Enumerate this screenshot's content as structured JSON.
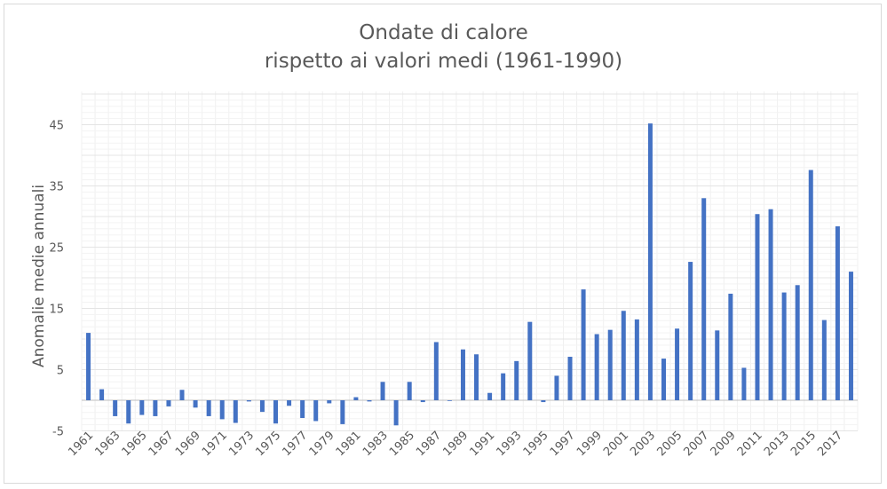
{
  "chart_data": {
    "type": "bar",
    "title": [
      "Ondate di calore",
      "rispetto ai valori medi (1961-1990)"
    ],
    "xlabel": "",
    "ylabel": "Anomalie medie annuali",
    "ylim": [
      -5,
      50
    ],
    "yticks": [
      -5,
      5,
      15,
      25,
      35,
      45
    ],
    "grid": true,
    "bar_color": "#4472c4",
    "categories": [
      1961,
      1962,
      1963,
      1964,
      1965,
      1966,
      1967,
      1968,
      1969,
      1970,
      1971,
      1972,
      1973,
      1974,
      1975,
      1976,
      1977,
      1978,
      1979,
      1980,
      1981,
      1982,
      1983,
      1984,
      1985,
      1986,
      1987,
      1988,
      1989,
      1990,
      1991,
      1992,
      1993,
      1994,
      1995,
      1996,
      1997,
      1998,
      1999,
      2000,
      2001,
      2002,
      2003,
      2004,
      2005,
      2006,
      2007,
      2008,
      2009,
      2010,
      2011,
      2012,
      2013,
      2014,
      2015,
      2016,
      2017,
      2018
    ],
    "xtick_labels": [
      "1961",
      "1963",
      "1965",
      "1967",
      "1969",
      "1971",
      "1973",
      "1975",
      "1977",
      "1979",
      "1981",
      "1983",
      "1985",
      "1987",
      "1989",
      "1991",
      "1993",
      "1995",
      "1997",
      "1999",
      "2001",
      "2003",
      "2005",
      "2007",
      "2009",
      "2011",
      "2013",
      "2015",
      "2017"
    ],
    "values": [
      11.0,
      1.8,
      -2.6,
      -3.8,
      -2.4,
      -2.6,
      -1.0,
      1.7,
      -1.2,
      -2.6,
      -3.1,
      -3.7,
      -0.2,
      -1.9,
      -3.8,
      -0.9,
      -2.9,
      -3.4,
      -0.5,
      -3.9,
      0.5,
      -0.2,
      3.0,
      -4.1,
      3.0,
      -0.3,
      9.5,
      -0.1,
      8.3,
      7.5,
      1.2,
      4.4,
      6.4,
      12.8,
      -0.3,
      4.0,
      7.1,
      18.1,
      10.8,
      11.5,
      14.6,
      13.2,
      45.2,
      6.8,
      11.7,
      22.6,
      33.0,
      11.4,
      17.4,
      5.3,
      30.4,
      31.2,
      17.6,
      18.8,
      37.6,
      13.1,
      28.4,
      21.0
    ]
  }
}
